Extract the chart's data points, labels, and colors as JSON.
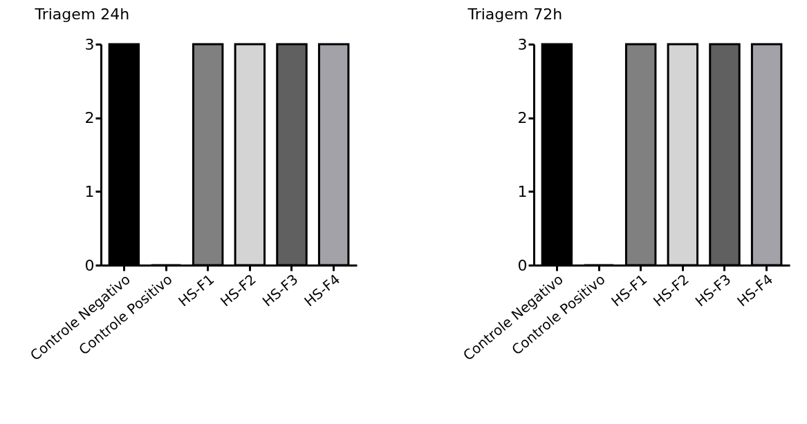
{
  "chart_data": [
    {
      "type": "bar",
      "title": "Triagem 24h",
      "categories": [
        "Controle Negativo",
        "Controle Positivo",
        "HS-F1",
        "HS-F2",
        "HS-F3",
        "HS-F4"
      ],
      "values": [
        3,
        0,
        3,
        3,
        3,
        3
      ],
      "colors": [
        "#000000",
        "#ffffff",
        "#808080",
        "#d4d4d4",
        "#606060",
        "#a2a2a8"
      ],
      "ylim": [
        0,
        3
      ],
      "yticks": [
        0,
        1,
        2,
        3
      ]
    },
    {
      "type": "bar",
      "title": "Triagem 72h",
      "categories": [
        "Controle Negativo",
        "Controle Positivo",
        "HS-F1",
        "HS-F2",
        "HS-F3",
        "HS-F4"
      ],
      "values": [
        3,
        0,
        3,
        3,
        3,
        3
      ],
      "colors": [
        "#000000",
        "#ffffff",
        "#808080",
        "#d4d4d4",
        "#606060",
        "#a2a2a8"
      ],
      "ylim": [
        0,
        3
      ],
      "yticks": [
        0,
        1,
        2,
        3
      ]
    }
  ]
}
